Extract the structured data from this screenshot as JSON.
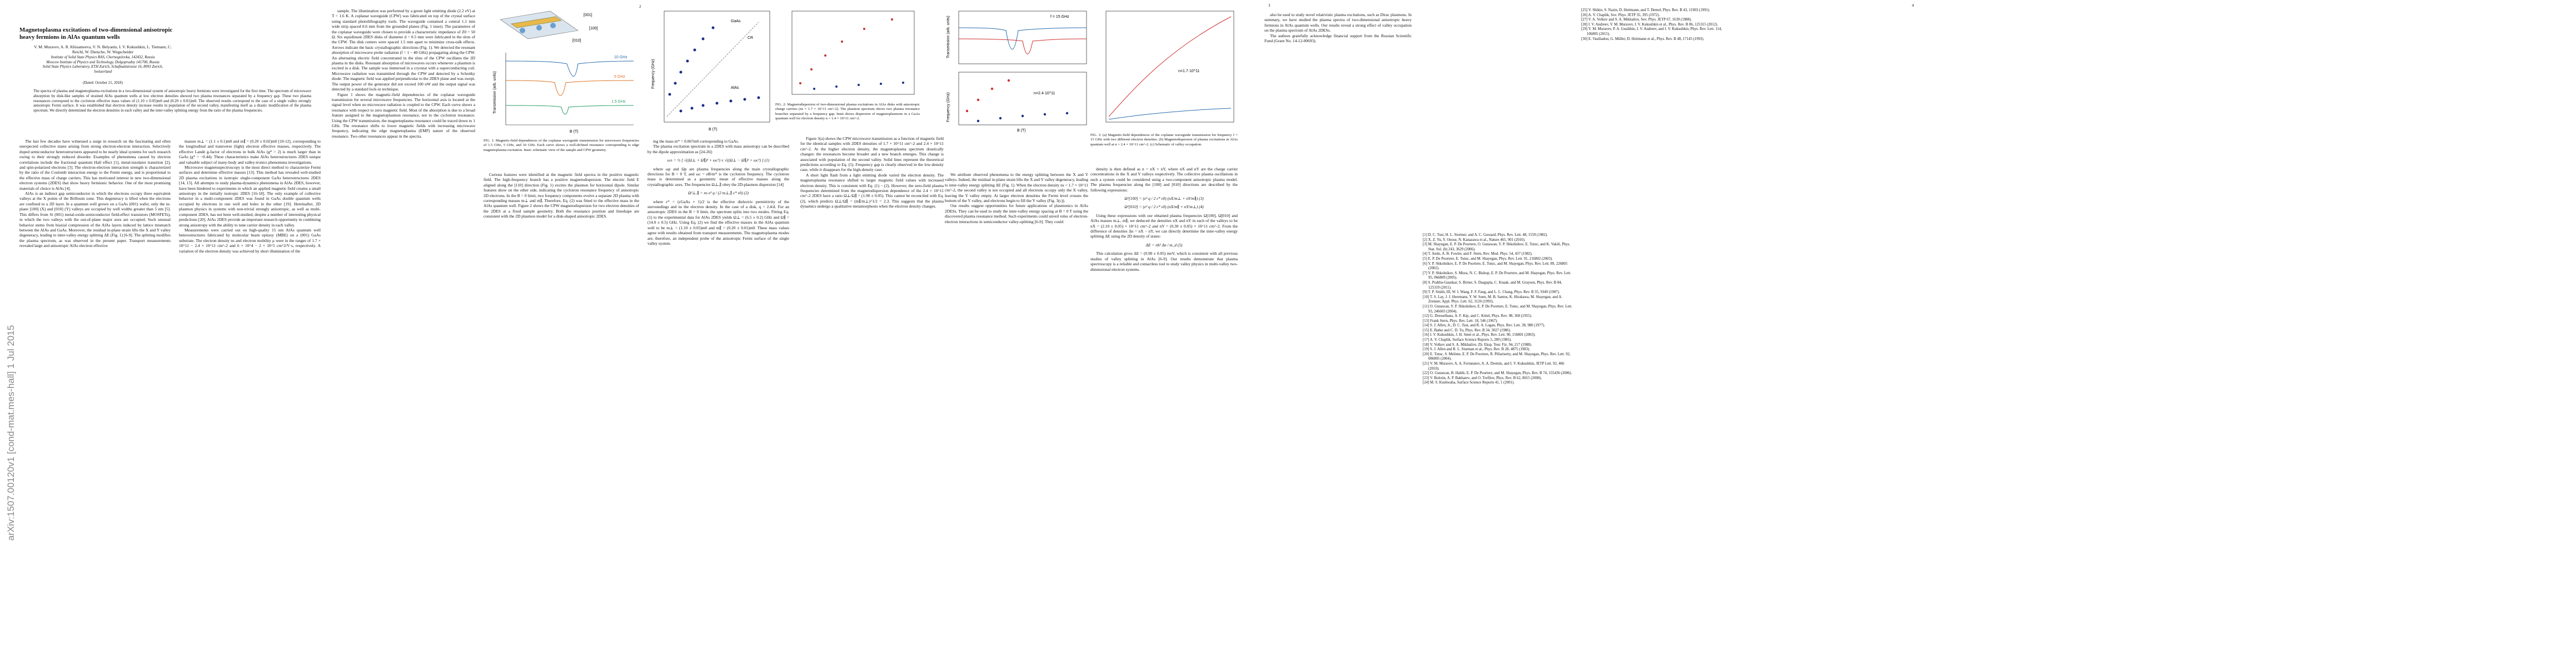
{
  "stamp": "arXiv:1507.00120v1  [cond-mat.mes-hall]  1 Jul 2015",
  "page_numbers": [
    "2",
    "3",
    "4"
  ],
  "title": "Magnetoplasma excitations of two-dimensional anisotropic heavy fermions in AlAs quantum wells",
  "authors": [
    "V. M. Muravev, A. R. Khisameeva, V. N. Belyanin, I. V. Kukushkin, L. Tiemann, C. Reichl, W. Dietsche, W. Wegscheider"
  ],
  "affiliations": [
    "Institute of Solid State Physics RAS, Chernogolovka, 142432, Russia",
    "Moscow Institute of Physics and Technology, Dolgoprudny 141700, Russia",
    "Solid State Physics Laboratory, ETH Zurich, Schafmattstrasse 16, 8093 Zurich, Switzerland"
  ],
  "date": "(Dated: October 21, 2018)",
  "abstract": "The spectra of plasma and magnetoplasma excitations in a two-dimensional system of anisotropic heavy fermions were investigated for the first time. The spectrum of microwave absorption by disk-like samples of strained AlAs quantum wells at low electron densities showed two plasma resonances separated by a frequency gap. These two plasma resonances correspond to the cyclotron effective mass values of (1.10 ± 0.05)m0 and (0.20 ± 0.01)m0. The observed results correspond to the case of a single valley strongly anisotropic Fermi surface. It was established that electron density increase results in population of the second valley, manifesting itself as a drastic modification of the plasma spectrum. We directly determined the electron densities in each valley and the inter-valley splitting energy from the ratio of the plasma frequencies.",
  "columns": [
    [
      "The last few decades have witnessed a surge in research on the fascinating and often unexpected collective states arising from strong electron-electron interaction. Selectively doped semiconductor heterostructures appeared to be nearly ideal systems for such research owing to their strongly reduced disorder. Examples of phenomena caused by electron correlations include the fractional quantum Hall effect [1], metal-insulator transition [2], and spin-polarized electrons [3]. The electron-electron interaction strength is characterized by the ratio of the Coulomb interaction energy to the Fermi energy, and is proportional to the effective mass of charge carriers. This has motivated interest in new two-dimensional electron systems (2DES) that show heavy fermionic behavior. One of the most promising materials of choice is AlAs [4].",
      "AlAs is an indirect gap semiconductor in which the electrons occupy three equivalent valleys at the X points of the Brillouin zone. This degeneracy is lifted when the electrons are confined to a 2D layer. In a quantum well grown on a GaAs (001) wafer, only the in-plane [100] (X) and [010] (Y) valleys are occupied by well widths greater than 5 nm [5]. This differs from Si (001) metal-oxide-semiconductor field-effect transistors (MOSFETs), in which the two valleys with the out-of-plane major axes are occupied. Such unusual behavior stems from biaxial compression of the AlAs layers induced by lattice mismatch between the AlAs and GaAs. Moreover, the residual in-plane strain lifts the X and Y valley degeneracy, leading to inter-valley energy splitting ΔE (Fig. 1) [6-9]. The splitting modifies the plasma spectrum, as was observed in the present paper. Transport measurements revealed large and anisotropic AlAs electron effective"
    ],
    [
      "masses m⊥ = (1.1 ± 0.1)m0 and m∥ = (0.20 ± 0.02)m0 [10-12], corresponding to the longitudinal and transverse (light) electron effective masses, respectively. The effective Landé g-factor of electrons in bulk AlAs (g* = 2) is much larger than in GaAs (g* = −0.44). These characteristics make AlAs heterostructures 2DES unique and valuable subject of many-body and valley-tronics phenomena investigations.",
      "Microwave magnetospectroscopy is the most direct method to characterize Fermi surfaces and determine effective masses [13]. This method has revealed well-studied 2D plasma excitations in isotropic single-component GaAs heterostructures 2DES [14, 15]. All attempts to study plasma-dynamics phenomena in AlAs 2DES, however, have been hindered to experiments in which an applied magnetic field creates a small anisotropy in the initially isotropic 2DES [16-18]. The only example of collective behavior in a multi-component 2DES was found in GaAs double quantum wells occupied by electrons in one well and holes in the other [19]. Hereinafter, 2D plasmon physics in systems with non-trivial strongly anisotropic, as well as multi-component 2DES, has not been well-studied, despite a number of interesting physical predictions [20]. AlAs 2DES provide an important research opportunity in combining strong anisotropy with the ability to tune carrier density in each valley.",
      "Measurements were carried out on high-quality 15 nm AlAs quantum well heterostructures fabricated by molecular beam epitaxy (MBE) on a (001) GaAs substrate. The electron density ns and electron mobility μ were in the ranges of 1.7 × 10^11 − 2.4 × 10^11 cm^-2 and 6 × 10^4 − 2 × 10^5 cm^2/V·s, respectively. A variation of the electron density was achieved by short illumination of the"
    ],
    [
      "sample. The illumination was performed by a green light emitting diode (2.2 eV) at T = 1.6 K. A coplanar waveguide (CPW) was fabricated on top of the crystal surface using standard photolithography tools. The waveguide contained a central 1.1 mm wide strip spaced 0.6 mm from the grounded planes (Fig. 1 inset). The parameters of the coplanar waveguide were chosen to provide a characteristic impedance of Z0 = 50 Ω. Six equidistant 2DES disks of diameter d = 0.5 mm were fabricated in the slots of the CPW. The disk centers were spaced 1.5 mm apart to minimize cross-talk effects. Arrows indicate the basic crystallographic directions (Fig. 1). We detected the resonant absorption of microwave probe radiation (f = 1 − 40 GHz) propagating along the CPW. An alternating electric field concentrated in the slots of the CPW oscillates the 2D plasma in the disks. Resonant absorption of microwaves occurs whenever a plasmon is excited in a disk. The sample was immersed in a cryostat with a superconducting coil. Microwave radiation was transmitted through the CPW and detected by a Schottky diode. The magnetic field was applied perpendicular to the 2DES plane and was swept. The output power of the generator did not exceed 100 nW and the output signal was detected by a standard lock-in technique.",
      "Figure 1 shows the magnetic-field dependencies of the coplanar waveguide transmission for several microwave frequencies. The horizontal axis is located at the signal level when no microwave radiation is coupled to the CPW. Each curve shows a resonance with respect to zero magnetic field. Most of the absorption is due to a broad feature assigned to the magnetoplasmon resonance, not to the cyclotron resonance. Using the CPW transmission, the magnetoplasma resonance could be traced down to 1 GHz. The resonance shifts to lower magnetic fields with increasing microwave frequency, indicating the edge magnetoplasma (EMP) nature of the observed resonance. Two other resonances appear in the spectra."
    ],
    [
      "Curious features were identified at the magnetic field spectra in the positive magnetic field. The high-frequency branch has a positive magnetodispersion. The electric field E aligned along the [110] direction (Fig. 1) excites the plasmon for horizontal dipole. Similar features show on the other side, indicating the cyclotron resonance frequency of anisotropic 2D electrons. In the B = 0 limit, two frequency components evolve a separate 2D plasma with corresponding masses m⊥ and m∥. Therefore, Eq. (2) was fitted to the effective mass in the AlAs quantum well. Figure 2 shows the CPW magnetodispersion for two electron densities of the 2DES at a fixed sample geometry. Both the resonance position and lineshape are consistent with the 2D plasmon model for a disk-shaped anisotropic 2DES."
    ],
    [
      "ing the mass m* = 0.067m0 corresponding to GaAs.",
      "The plasma excitation spectrum in a 2DES with mass anisotropy can be described by the dipole approximation as [24-26]:",
      "where ωp and Ωp are plasma frequencies along the main crystallographic directions for B = 0 T, and ωc = eB/m* is the cyclotron frequency. The cyclotron mass is determined as a geometric mean of effective masses along the crystallographic axes. The frequencies Ω⊥,∥ obey the 2D-plasmon dispersion [14]",
      "where ε* = (εGaAs + 1)/2 is the effective dielectric permittivity of the surroundings and ns the electron density. In the case of a disk, q = 2.4/d. For an anisotropic 2DES in the B = 0 limit, the spectrum splits into two modes. Fitting Eq. (1) to the experimental data for AlAs 2DES yields Ω⊥ = (6.5 ± 0.2) GHz and Ω∥ = (14.0 ± 0.5) GHz. Using Eq. (2) we find the effective masses in the AlAs quantum well to be m⊥ = (1.10 ± 0.05)m0 and m∥ = (0.20 ± 0.01)m0. These mass values agree with results obtained from transport measurements. The magnetoplasma modes are, therefore, an independent probe of the anisotropic Fermi surface of the single valley system."
    ],
    [
      "Figure 3(a) shows the CPW microwave transmission as a function of magnetic field for the identical samples with 2DES densities of 1.7 × 10^11 cm^-2 and 2.4 × 10^11 cm^-2. At the higher electron density, the magnetoplasma spectrum drastically changes: the resonances become broader and a new branch emerges. This change is associated with population of the second valley. Solid lines represent the theoretical predictions according to Eq. (5). Frequency gap is clearly observed in the low-density case, while it disappears for the high-density case.",
      "A short light flash from a light emitting diode varied the electron density. The magnetoplasma resonance shifted to larger magnetic field values with increased electron density. This is consistent with Eq. (1) − (2). However, the zero-field plasma frequencies determined from the magnetodispersion dependence of the 2.4 × 10^11 cm^-2 2DES have a ratio Ω⊥/Ω∥ = (1.90 ± 0.05). This cannot be reconciled with Eq. (2), which predicts Ω⊥/Ω∥ = (m∥/m⊥)^1/2 = 2.3. This suggests that the plasma dynamics undergo a qualitative metamorphosis when the electron density changes."
    ],
    [
      "We attribute observed phenomena to the energy splitting between the X and Y valleys. Indeed, the residual in-plane strain lifts the X and Y valley degeneracy, leading to inter-valley energy splitting ΔE (Fig. 1). When the electron density ns < 1.7 × 10^11 cm^-2, the second valley is not occupied and all electrons occupy only the X valley, leaving the Y valley empty. At larger electron densities the Fermi level crosses the bottom of the Y valley, and electrons begin to fill the Y valley (Fig. 3(c)).",
      "Our results suggest opportunities for future applications of plasmonics in AlAs 2DESs. They can be used to study the inter-valley energy spacing at B = 0 T using the discovered plasma resonance method. Such experiments could unveil roles of electron-electron interactions in semiconductor valley-splitting [6-9]. They could"
    ],
    [
      "density is then defined as n = nX + nY, where nX and nY are the charge carrier concentrations in the X and Y valleys respectively. The collective plasma oscillations in such a system could be considered using a two-component anisotropic plasma model. The plasma frequencies along the [100] and [010] directions are described by the following expressions:",
      "Using these expressions with our obtained plasma frequencies Ω[100], Ω[010] and AlAs masses m⊥, m∥, we deduced the densities nX and nY in each of the valleys to be nX = (2.10 ± 0.05) × 10^11 cm^-2 and nY = (0.30 ± 0.05) × 10^11 cm^-2. From the difference of densities Δn = nX − nY, we can directly determine the inter-valley energy splitting ΔE using the 2D density of states:",
      "This calculation gives ΔE = (0.90 ± 0.05) meV, which is consistent with all previous studies of valley splitting in AlAs [6-9]. Our results demonstrate that plasma spectroscopy is a reliable and contactless tool to study valley physics in multi-valley two-dimensional electron systems."
    ],
    [
      "also be used to study novel relativistic plasma excitations, such as Dirac plasmons. In summary, we have studied the plasma spectra of two-dimensional anisotropic heavy fermions in AlAs quantum wells. Our results reveal a strong effect of valley occupation on the plasma spectrum of AlAs 2DESs.",
      "The authors gratefully acknowledge financial support from the Russian Scientific Fund (Grant No. 14-12-00693)."
    ],
    []
  ],
  "equations": [
    "ω± = ½ [ √((Ω⊥ + Ω∥)² + ωc²) ± √((Ω⊥ − Ω∥)² + ωc²) ]     (1)",
    "Ω²⊥,∥ = ns e² q / (2 m⊥,∥ ε* ε0)     (2)",
    "Ω²[100] = (e² q / 2 ε* ε0) (nX/m⊥ + nY/m∥)     (3)",
    "Ω²[010] = (e² q / 2 ε* ε0) (nX/m∥ + nY/m⊥)     (4)",
    "ΔE = πħ² Δn / m_d     (5)"
  ],
  "figures": [
    {
      "caption": "FIG. 1: Magnetic-field dependences of the coplanar waveguide transmission for microwave frequencies of 1.5 GHz, 5 GHz, and 10 GHz. Each curve shows a well-defined resonance corresponding to edge magnetoplasma excitation. Inset: schematic view of the sample and CPW geometry.",
      "labels": [
        "[001]",
        "[100]",
        "[010]",
        "B (T)",
        "Transmission (arb. units)",
        "10 GHz",
        "5 GHz",
        "1.5 GHz"
      ]
    },
    {
      "caption": "FIG. 2: Magnetodispersion of two-dimensional plasma excitations in AlAs disks with anisotropic charge carriers (ns = 1.7 × 10^11 cm^-2). The plasmon spectrum shows two plasma resonance branches separated by a frequency gap. Inset shows dispersion of magnetoplasmons in a GaAs quantum well for electron density n = 1.4 × 10^11 cm^-2.",
      "labels": [
        "Frequency (GHz)",
        "B (T)",
        "GaAs",
        "AlAs",
        "CR"
      ]
    },
    {
      "caption": "FIG. 3: (a) Magnetic-field dependences of the coplanar waveguide transmission for frequency f = 15 GHz with two different electron densities. (b) Magnetodispersion of plasma excitations in AlAs quantum well at n = 2.4 × 10^11 cm^-2. (c) Schematic of valley occupation.",
      "labels": [
        "Transmission (arb. units)",
        "Frequency (GHz)",
        "B (T)",
        "f = 15 GHz",
        "n=2.4·10^11",
        "n=1.7·10^11"
      ]
    }
  ],
  "references": [
    "[1] D. C. Tsui, H. L. Stormer, and A. C. Gossard, Phys. Rev. Lett. 48, 1559 (1982).",
    "[2] X. Z. Yu, Y. Onose, N. Kanazawa et al., Nature 465, 901 (2010).",
    "[3] M. Shayegan, E. P. De Poortere, O. Gunawan, Y. P. Shkolnikov, E. Tutuc, and K. Vakili, Phys. Stat. Sol. (b) 243, 3629 (2006).",
    "[4] T. Ando, A. B. Fowler, and F. Stern, Rev. Mod. Phys. 54, 437 (1982).",
    "[5] E. P. De Poortere, E. Tutuc, and M. Shayegan, Phys. Rev. Lett. 91, 216802 (2003).",
    "[6] Y. P. Shkolnikov, E. P. De Poortere, E. Tutuc, and M. Shayegan, Phys. Rev. Lett. 89, 226805 (2002).",
    "[7] Y. P. Shkolnikov, S. Misra, N. C. Bishop, E. P. De Poortere, and M. Shayegan, Phys. Rev. Lett. 95, 066809 (2005).",
    "[8] S. Prabhu-Gaunkar, S. Birner, S. Dasgupta, C. Knaak, and M. Grayson, Phys. Rev. B 84, 125319 (2011).",
    "[9] T. P. Smith, III, W. I. Wang, F. F. Fang, and L. L. Chang, Phys. Rev. B 35, 9349 (1987).",
    "[10] T. S. Lay, J. J. Heremans, Y. W. Suen, M. B. Santos, K. Hirakawa, M. Shayegan, and A. Zrenner, Appl. Phys. Lett. 62, 3120 (1993).",
    "[11] O. Gunawan, Y. P. Shkolnikov, E. P. De Poortere, E. Tutuc, and M. Shayegan, Phys. Rev. Lett. 93, 246603 (2004).",
    "[12] G. Dresselhaus, A. F. Kip, and C. Kittel, Phys. Rev. 98, 368 (1955).",
    "[13] Frank Stern, Phys. Rev. Lett. 18, 546 (1967).",
    "[14] S. J. Allen, Jr., D. C. Tsui, and R. A. Logan, Phys. Rev. Lett. 38, 980 (1977).",
    "[15] E. Batke and C. D. Tu, Phys. Rev. B 34, 3027 (1986).",
    "[16] I. V. Kukushkin, J. H. Smet et al., Phys. Rev. Lett. 90, 156801 (2003).",
    "[17] A. V. Chaplik, Surface Science Reports 5, 289 (1985).",
    "[18] V. Volkov and S. A. Mikhailov, Zh. Eksp. Teor. Fiz. 94, 217 (1988).",
    "[19] S. J. Allen and R. L. Sturman et al., Phys. Rev. B 28, 4875 (1983).",
    "[20] E. Tutuc, S. Melinte, E. P. De Poortere, R. Pillarisetty, and M. Shayegan, Phys. Rev. Lett. 92, 086805 (2004).",
    "[21] V. M. Muravev, A. A. Fortunatov, A. A. Dremin, and I. V. Kukushkin, JETP Lett. 92, 466 (2010).",
    "[22] O. Gunawan, B. Habib, E. P. De Poortere, and M. Shayegan, Phys. Rev. B 74, 155436 (2006).",
    "[23] V. Bolotin, A. P. Bakharev, and O. Trefilov, Phys. Rev. B 62, 8015 (2000).",
    "[24] M. S. Kushwaha, Surface Science Reports 41, 1 (2001).",
    "[25] V. Shikin, S. Nazin, D. Heitmann, and T. Demel, Phys. Rev. B 43, 11903 (1991).",
    "[26] A. V. Chaplik, Sov. Phys. JETP 35, 395 (1972).",
    "[27] V. A. Volkov and S. A. Mikhailov, Sov. Phys. JETP 67, 1639 (1988).",
    "[28] I. V. Andreev, V. M. Muravev, I. V. Kukushkin et al., Phys. Rev. B 86, 125315 (2012).",
    "[29] V. M. Muravev, P. A. Gusikhin, I. V. Andreev, and I. V. Kukushkin, Phys. Rev. Lett. 114, 106805 (2015).",
    "[30] E. Vasiliadou, G. Müller, D. Heitmann et al., Phys. Rev. B 48, 17145 (1993)."
  ]
}
